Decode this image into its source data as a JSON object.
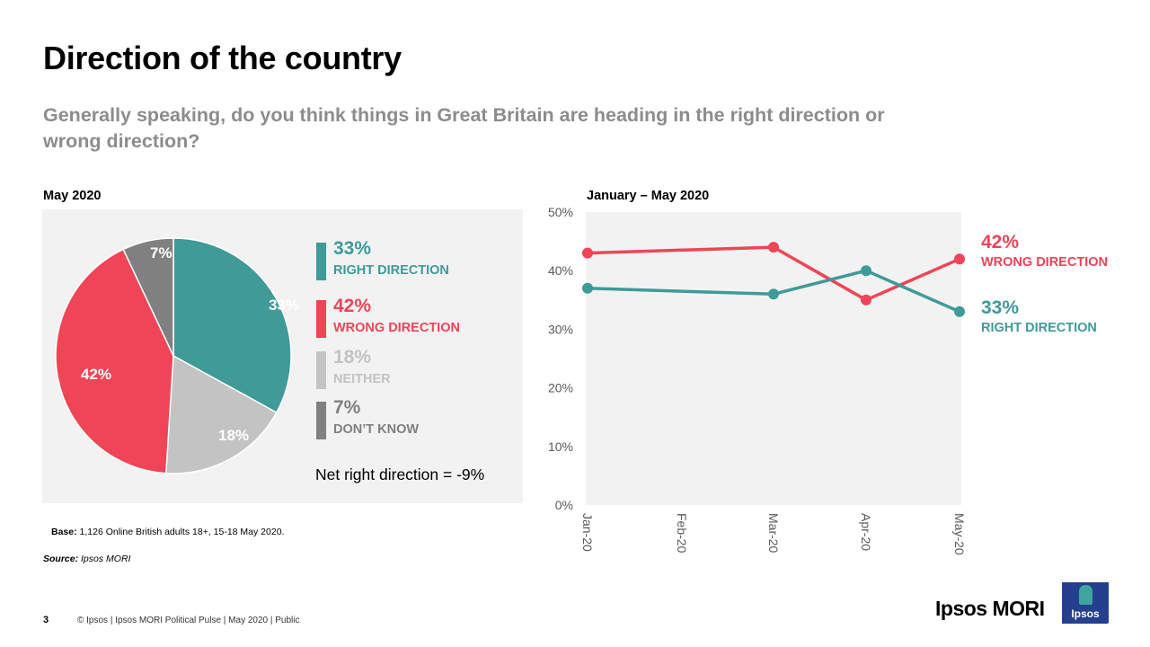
{
  "header": {
    "title": "Direction of the country",
    "subtitle": "Generally speaking, do you think things in Great Britain are heading in the right direction or wrong direction?"
  },
  "pie_panel": {
    "label": "May 2020",
    "net_text": "Net right direction = -9%"
  },
  "line_panel": {
    "label": "January – May 2020"
  },
  "colors": {
    "right": "#3f9a98",
    "wrong": "#f04457",
    "neither": "#c3c3c3",
    "dont_know": "#808080",
    "panel_bg": "#f2f2f2",
    "axis_text": "#595959"
  },
  "footer": {
    "base_label": "Base:",
    "base_text": " 1,126 Online British adults 18+, 15-18 May 2020.",
    "source_label": "Source:",
    "source_text": " Ipsos MORI",
    "page_number": "3",
    "copyright": "© Ipsos | Ipsos MORI  Political Pulse | May 2020 | Public",
    "brand": "Ipsos MORI",
    "logo_text": "Ipsos"
  },
  "chart_data": [
    {
      "type": "pie",
      "title": "May 2020",
      "slices": [
        {
          "key": "right",
          "value": 33,
          "label": "33%",
          "legend_pct": "33%",
          "legend_name": "RIGHT DIRECTION"
        },
        {
          "key": "neither",
          "value": 18,
          "label": "18%",
          "legend_pct": "18%",
          "legend_name": "NEITHER"
        },
        {
          "key": "wrong",
          "value": 42,
          "label": "42%",
          "legend_pct": "42%",
          "legend_name": "WRONG DIRECTION"
        },
        {
          "key": "dont_know",
          "value": 7,
          "label": "7%",
          "legend_pct": "7%",
          "legend_name": "DON’T KNOW"
        }
      ],
      "legend_order": [
        "right",
        "wrong",
        "neither",
        "dont_know"
      ],
      "legend_placement": "right"
    },
    {
      "type": "line",
      "title": "January – May 2020",
      "x": [
        "Jan-20",
        "Feb-20",
        "Mar-20",
        "Apr-20",
        "May-20"
      ],
      "ylim": [
        0,
        50
      ],
      "yticks": [
        0,
        10,
        20,
        30,
        40,
        50
      ],
      "ytick_labels": [
        "0%",
        "10%",
        "20%",
        "30%",
        "40%",
        "50%"
      ],
      "grid": false,
      "series": [
        {
          "key": "wrong",
          "name": "WRONG DIRECTION",
          "values": [
            43,
            null,
            44,
            35,
            42
          ],
          "end_label": "42%"
        },
        {
          "key": "right",
          "name": "RIGHT DIRECTION",
          "values": [
            37,
            null,
            36,
            40,
            33
          ],
          "end_label": "33%"
        }
      ],
      "legend_placement": "right"
    }
  ]
}
